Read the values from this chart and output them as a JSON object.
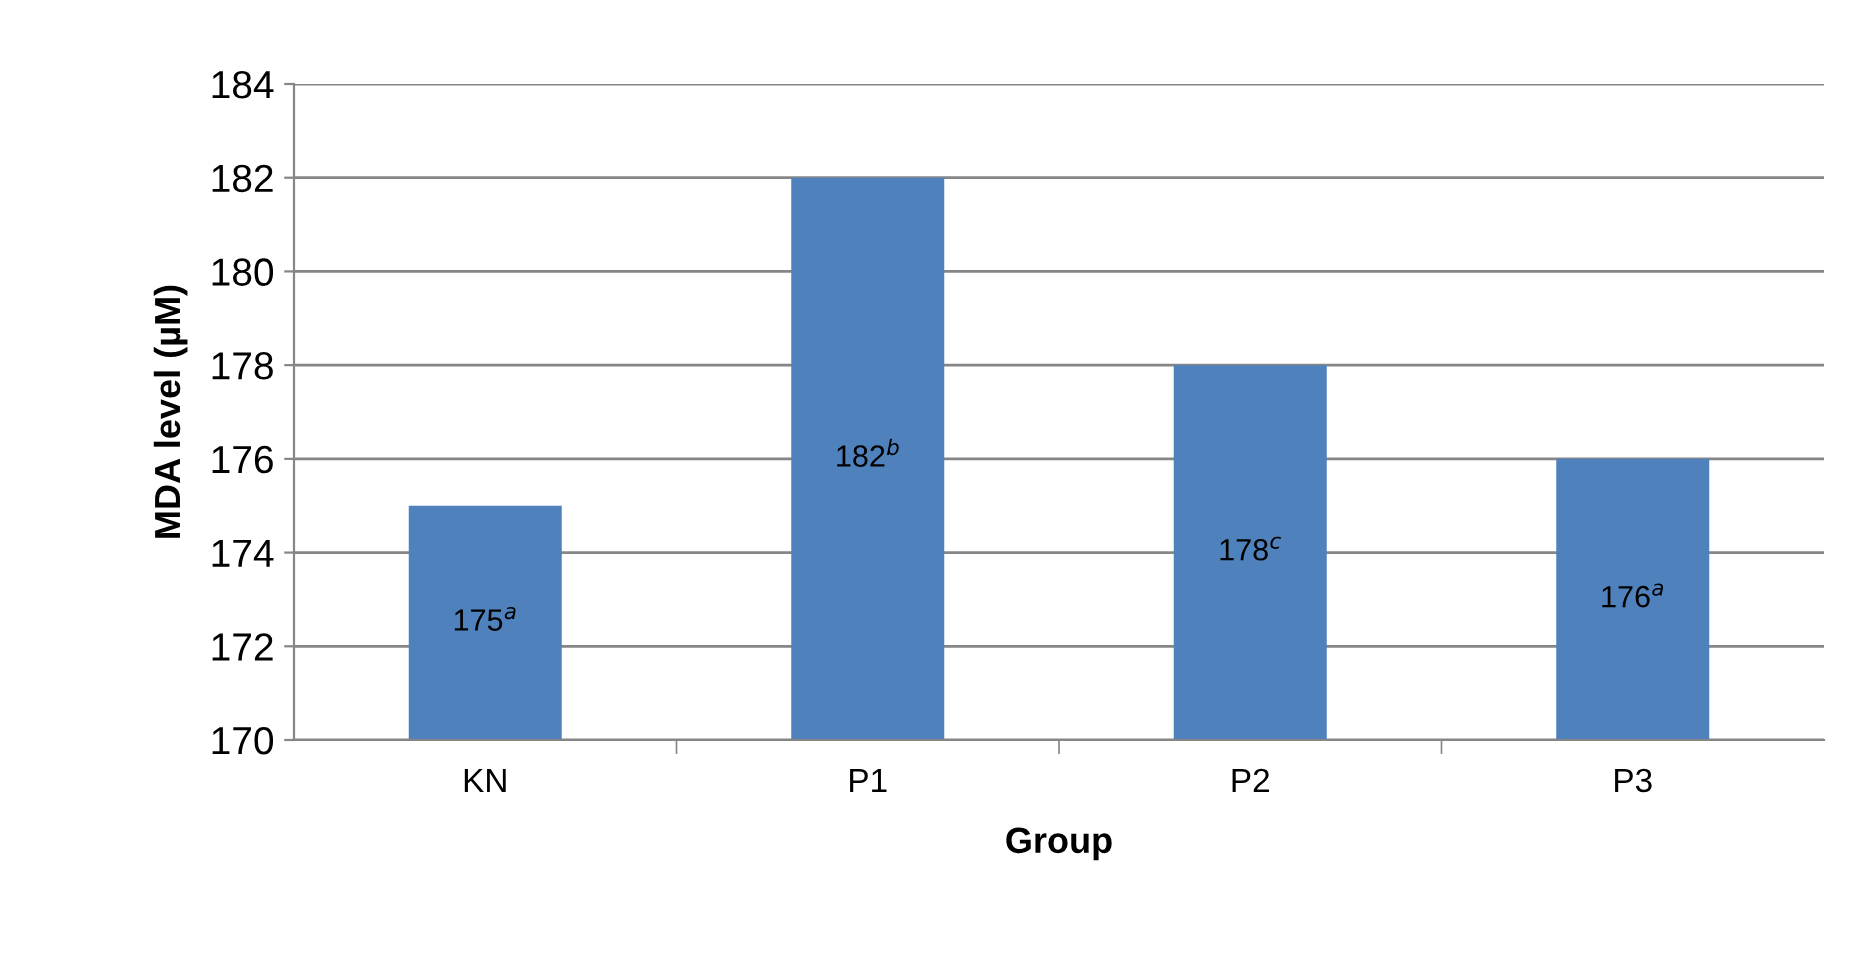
{
  "chart_data": {
    "type": "bar",
    "xlabel": "Group",
    "ylabel": "MDA level (µM)",
    "categories": [
      "KN",
      "P1",
      "P2",
      "P3"
    ],
    "values": [
      175,
      182,
      178,
      176
    ],
    "value_labels": [
      "175$^{a}$",
      "182$^{b}$",
      "178$^{c}$",
      "176$^{a}$"
    ],
    "color": "#4f81bd",
    "ylim": [
      170,
      184
    ],
    "yticks": [
      170,
      172,
      174,
      176,
      178,
      180,
      182,
      184
    ],
    "grid": "y",
    "legend": false
  }
}
